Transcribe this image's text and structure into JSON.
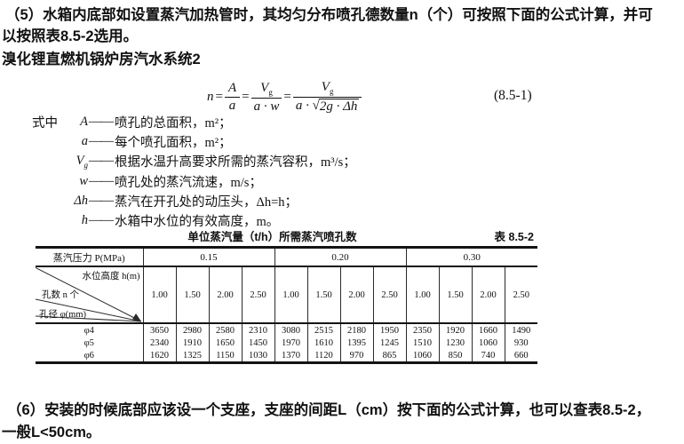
{
  "colors": {
    "text": "#111111",
    "background": "#ffffff",
    "rule": "#141414"
  },
  "para5": {
    "line1": "（5）水箱内底部如设置蒸汽加热管时，其均匀分布喷孔德数量n（个）可按照下面的公式计算，并可",
    "line2": "以按照表8.5-2选用。"
  },
  "subtitle": "溴化锂直燃机锅炉房汽水系统2",
  "formula": {
    "lhs": "n",
    "equals": "=",
    "frac1": {
      "num": "A",
      "den": "a"
    },
    "frac2": {
      "num": "V",
      "num_sub": "g",
      "den": "a · w"
    },
    "frac3": {
      "num": "V",
      "num_sub": "g",
      "den_prefix": "a · ",
      "sqrt_sign": "√",
      "radicand": "2g · Δh"
    },
    "number": "(8.5-1)"
  },
  "where_label": "式中",
  "dash": "——",
  "definitions": [
    {
      "symbol": "A",
      "sub": "",
      "desc": "喷孔的总面积，m²；"
    },
    {
      "symbol": "a",
      "sub": "",
      "desc": "每个喷孔面积，m²；"
    },
    {
      "symbol": "V",
      "sub": "g",
      "desc": "根据水温升高要求所需的蒸汽容积，m³/s；"
    },
    {
      "symbol": "w",
      "sub": "",
      "desc": "喷孔处的蒸汽流速，m/s；"
    },
    {
      "symbol": "Δh",
      "sub": "",
      "desc": "蒸汽在开孔处的动压头，Δh=h；"
    },
    {
      "symbol": "h",
      "sub": "",
      "desc": "水箱中水位的有效高度，m。"
    }
  ],
  "table": {
    "title": "单位蒸汽量（t/h）所需蒸汽喷孔数",
    "table_no": "表 8.5-2",
    "pressure_label": "蒸汽压力 P(MPa)",
    "pressures": [
      "0.15",
      "0.20",
      "0.30"
    ],
    "diagonal": {
      "top": "水位高度 h(m)",
      "middle": "孔数 n 个",
      "bottom": "孔径 φ(mm)"
    },
    "water_levels": [
      "1.00",
      "1.50",
      "2.00",
      "2.50",
      "1.00",
      "1.50",
      "2.00",
      "2.50",
      "1.00",
      "1.50",
      "2.00",
      "2.50"
    ],
    "rows": [
      {
        "diameter": "φ4",
        "values": [
          "3650",
          "2980",
          "2580",
          "2310",
          "3080",
          "2515",
          "2180",
          "1950",
          "2350",
          "1920",
          "1660",
          "1490"
        ]
      },
      {
        "diameter": "φ5",
        "values": [
          "2340",
          "1910",
          "1650",
          "1450",
          "1970",
          "1610",
          "1395",
          "1245",
          "1510",
          "1230",
          "1060",
          "930"
        ]
      },
      {
        "diameter": "φ6",
        "values": [
          "1620",
          "1325",
          "1150",
          "1030",
          "1370",
          "1120",
          "970",
          "865",
          "1060",
          "850",
          "740",
          "660"
        ]
      }
    ]
  },
  "para6": {
    "line1": "（6）安装的时候底部应该设一个支座，支座的间距L（cm）按下面的公式计算，也可以查表8.5-2，",
    "line2": "一般L<50cm。"
  }
}
